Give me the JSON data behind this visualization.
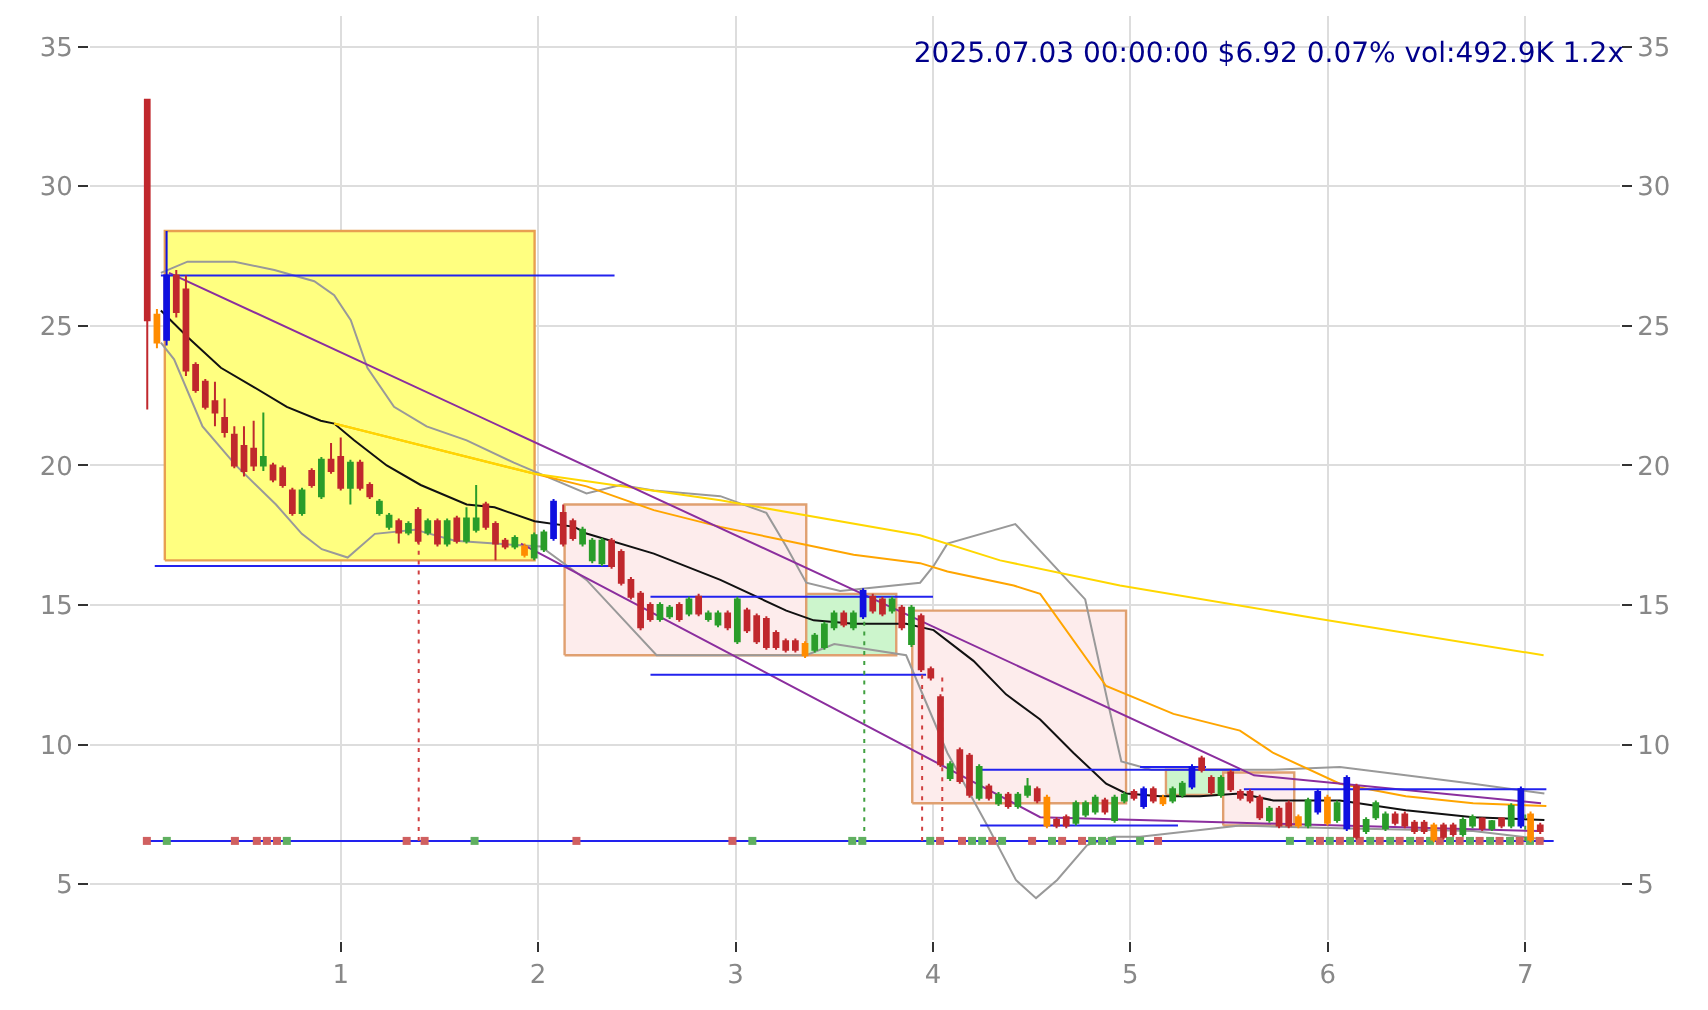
{
  "chart_data": {
    "type": "candlestick",
    "title": "2025.07.03 00:00:00 $6.92 0.07% vol:492.9K 1.2x",
    "x": [
      0.02,
      0.069,
      0.118,
      0.167,
      0.216,
      0.265,
      0.314,
      0.363,
      0.412,
      0.461,
      0.51,
      0.559,
      0.608,
      0.657,
      0.706,
      0.755,
      0.804,
      0.853,
      0.902,
      0.951,
      1.0,
      1.049,
      1.098,
      1.147,
      1.196,
      1.245,
      1.294,
      1.343,
      1.392,
      1.441,
      1.49,
      1.539,
      1.588,
      1.637,
      1.686,
      1.735,
      1.784,
      1.833,
      1.882,
      1.931,
      1.98,
      2.029,
      2.078,
      2.127,
      2.176,
      2.225,
      2.274,
      2.323,
      2.372,
      2.421,
      2.47,
      2.519,
      2.568,
      2.617,
      2.666,
      2.715,
      2.764,
      2.813,
      2.862,
      2.911,
      2.96,
      3.009,
      3.058,
      3.107,
      3.156,
      3.205,
      3.254,
      3.303,
      3.352,
      3.401,
      3.45,
      3.499,
      3.548,
      3.597,
      3.646,
      3.695,
      3.744,
      3.793,
      3.842,
      3.891,
      3.94,
      3.989,
      4.038,
      4.087,
      4.136,
      4.185,
      4.234,
      4.283,
      4.332,
      4.381,
      4.43,
      4.479,
      4.528,
      4.577,
      4.626,
      4.675,
      4.724,
      4.773,
      4.822,
      4.871,
      4.92,
      4.969,
      5.018,
      5.067,
      5.116,
      5.165,
      5.214,
      5.263,
      5.312,
      5.361,
      5.41,
      5.459,
      5.508,
      5.557,
      5.606,
      5.655,
      5.704,
      5.753,
      5.802,
      5.851,
      5.9,
      5.949,
      5.998,
      6.047,
      6.096,
      6.145,
      6.194,
      6.243,
      6.292,
      6.341,
      6.39,
      6.439,
      6.488,
      6.537,
      6.586,
      6.635,
      6.684,
      6.733,
      6.782,
      6.831,
      6.88,
      6.929,
      6.978,
      7.027,
      7.076
    ],
    "ohlc": [
      [
        33.1,
        33.1,
        22.0,
        25.2
      ],
      [
        25.4,
        25.6,
        24.2,
        24.4
      ],
      [
        24.5,
        28.4,
        24.3,
        26.8
      ],
      [
        26.8,
        27.0,
        25.3,
        25.5
      ],
      [
        26.3,
        26.8,
        23.2,
        23.4
      ],
      [
        23.6,
        23.7,
        22.6,
        22.7
      ],
      [
        23.0,
        23.1,
        22.0,
        22.1
      ],
      [
        22.3,
        23.0,
        21.4,
        21.9
      ],
      [
        21.7,
        22.4,
        21.0,
        21.2
      ],
      [
        21.1,
        21.4,
        19.9,
        20.0
      ],
      [
        20.7,
        21.4,
        19.6,
        19.8
      ],
      [
        20.6,
        21.6,
        19.8,
        20.0
      ],
      [
        20.0,
        21.9,
        19.8,
        20.3
      ],
      [
        20.0,
        20.1,
        19.4,
        19.5
      ],
      [
        19.9,
        20.0,
        19.2,
        19.3
      ],
      [
        19.1,
        19.2,
        18.2,
        18.3
      ],
      [
        18.3,
        19.2,
        18.2,
        19.1
      ],
      [
        19.8,
        19.9,
        19.2,
        19.3
      ],
      [
        18.9,
        20.3,
        18.8,
        20.2
      ],
      [
        20.2,
        20.8,
        19.7,
        19.8
      ],
      [
        20.3,
        21.0,
        19.1,
        19.2
      ],
      [
        19.2,
        20.2,
        18.6,
        20.1
      ],
      [
        20.1,
        20.2,
        19.1,
        19.2
      ],
      [
        19.3,
        19.4,
        18.8,
        18.9
      ],
      [
        18.3,
        18.8,
        18.2,
        18.7
      ],
      [
        17.8,
        18.3,
        17.7,
        18.2
      ],
      [
        18.0,
        18.1,
        17.2,
        17.6
      ],
      [
        17.6,
        18.0,
        17.5,
        17.9
      ],
      [
        18.4,
        18.5,
        17.2,
        17.3
      ],
      [
        17.6,
        18.1,
        17.5,
        18.0
      ],
      [
        18.0,
        18.1,
        17.1,
        17.2
      ],
      [
        17.2,
        18.1,
        17.1,
        18.0
      ],
      [
        18.1,
        18.2,
        17.2,
        17.3
      ],
      [
        17.3,
        18.5,
        17.2,
        18.1
      ],
      [
        17.7,
        19.3,
        17.6,
        18.1
      ],
      [
        18.6,
        18.7,
        17.7,
        17.8
      ],
      [
        17.9,
        18.0,
        16.6,
        17.2
      ],
      [
        17.3,
        17.4,
        17.0,
        17.1
      ],
      [
        17.1,
        17.5,
        17.0,
        17.4
      ],
      [
        17.1,
        17.2,
        16.7,
        16.8
      ],
      [
        16.7,
        17.6,
        16.6,
        17.5
      ],
      [
        17.0,
        17.7,
        16.9,
        17.6
      ],
      [
        17.4,
        18.8,
        17.3,
        18.7
      ],
      [
        18.3,
        18.6,
        17.1,
        17.2
      ],
      [
        18.0,
        18.1,
        17.3,
        17.4
      ],
      [
        17.2,
        17.8,
        17.1,
        17.7
      ],
      [
        16.6,
        17.4,
        16.5,
        17.3
      ],
      [
        16.5,
        17.4,
        16.4,
        17.3
      ],
      [
        17.3,
        17.4,
        16.3,
        16.4
      ],
      [
        16.9,
        17.0,
        15.7,
        15.8
      ],
      [
        15.9,
        16.0,
        15.2,
        15.3
      ],
      [
        15.4,
        15.5,
        14.1,
        14.2
      ],
      [
        15.0,
        15.1,
        14.4,
        14.5
      ],
      [
        14.5,
        15.1,
        14.4,
        15.0
      ],
      [
        14.6,
        15.0,
        14.5,
        14.9
      ],
      [
        15.0,
        15.1,
        14.4,
        14.5
      ],
      [
        14.7,
        15.3,
        14.6,
        15.2
      ],
      [
        15.3,
        15.4,
        14.6,
        14.7
      ],
      [
        14.5,
        14.8,
        14.4,
        14.7
      ],
      [
        14.3,
        14.8,
        14.2,
        14.7
      ],
      [
        14.7,
        14.8,
        14.1,
        14.2
      ],
      [
        13.7,
        15.3,
        13.6,
        15.2
      ],
      [
        14.8,
        14.9,
        14.0,
        14.1
      ],
      [
        14.6,
        14.7,
        13.6,
        13.7
      ],
      [
        14.5,
        14.6,
        13.4,
        13.5
      ],
      [
        14.0,
        14.1,
        13.4,
        13.5
      ],
      [
        13.7,
        13.8,
        13.3,
        13.4
      ],
      [
        13.7,
        13.8,
        13.3,
        13.4
      ],
      [
        13.2,
        13.7,
        13.1,
        13.6
      ],
      [
        13.4,
        14.0,
        13.3,
        13.9
      ],
      [
        13.5,
        14.4,
        13.4,
        14.3
      ],
      [
        14.2,
        14.8,
        14.1,
        14.7
      ],
      [
        14.7,
        14.8,
        14.2,
        14.3
      ],
      [
        14.2,
        14.8,
        14.1,
        14.7
      ],
      [
        14.6,
        15.6,
        14.5,
        15.5
      ],
      [
        15.3,
        15.4,
        14.7,
        14.8
      ],
      [
        15.2,
        15.3,
        14.6,
        14.7
      ],
      [
        14.8,
        15.3,
        14.7,
        15.2
      ],
      [
        14.9,
        15.0,
        14.1,
        14.2
      ],
      [
        13.6,
        15.0,
        13.5,
        14.9
      ],
      [
        14.6,
        14.7,
        12.6,
        12.7
      ],
      [
        12.7,
        12.8,
        12.3,
        12.4
      ],
      [
        11.7,
        11.8,
        9.2,
        9.3
      ],
      [
        8.8,
        9.4,
        8.7,
        9.3
      ],
      [
        9.8,
        9.9,
        8.6,
        8.7
      ],
      [
        9.6,
        9.7,
        8.1,
        8.2
      ],
      [
        8.1,
        9.3,
        8.0,
        9.2
      ],
      [
        8.5,
        8.6,
        8.0,
        8.1
      ],
      [
        7.9,
        8.3,
        7.8,
        8.2
      ],
      [
        8.2,
        8.3,
        7.7,
        7.8
      ],
      [
        7.8,
        8.3,
        7.7,
        8.2
      ],
      [
        8.2,
        8.8,
        8.1,
        8.5
      ],
      [
        8.4,
        8.5,
        7.9,
        8.0
      ],
      [
        8.1,
        8.2,
        7.0,
        7.1
      ],
      [
        7.3,
        7.4,
        7.0,
        7.1
      ],
      [
        7.4,
        7.5,
        7.0,
        7.1
      ],
      [
        7.2,
        8.0,
        7.1,
        7.9
      ],
      [
        7.5,
        8.0,
        7.4,
        7.9
      ],
      [
        7.6,
        8.2,
        7.5,
        8.1
      ],
      [
        8.0,
        8.1,
        7.5,
        7.6
      ],
      [
        7.3,
        8.2,
        7.2,
        8.1
      ],
      [
        8.0,
        8.3,
        7.9,
        8.2
      ],
      [
        8.3,
        8.4,
        8.0,
        8.1
      ],
      [
        7.8,
        8.5,
        7.7,
        8.4
      ],
      [
        8.4,
        8.5,
        7.9,
        8.0
      ],
      [
        8.1,
        8.2,
        7.8,
        7.9
      ],
      [
        8.0,
        8.5,
        7.9,
        8.4
      ],
      [
        8.2,
        8.7,
        8.1,
        8.6
      ],
      [
        8.5,
        9.3,
        8.4,
        9.2
      ],
      [
        9.5,
        9.6,
        9.0,
        9.1
      ],
      [
        8.8,
        8.9,
        8.2,
        8.3
      ],
      [
        8.2,
        8.9,
        8.1,
        8.8
      ],
      [
        9.0,
        9.1,
        8.3,
        8.4
      ],
      [
        8.3,
        8.4,
        8.0,
        8.1
      ],
      [
        8.3,
        8.4,
        7.9,
        8.0
      ],
      [
        8.1,
        8.2,
        7.3,
        7.4
      ],
      [
        7.3,
        7.8,
        7.2,
        7.7
      ],
      [
        7.7,
        7.8,
        7.0,
        7.1
      ],
      [
        7.9,
        8.0,
        7.0,
        7.1
      ],
      [
        7.4,
        7.5,
        7.0,
        7.1
      ],
      [
        7.1,
        8.1,
        7.0,
        8.0
      ],
      [
        7.6,
        8.4,
        7.5,
        8.3
      ],
      [
        8.1,
        8.2,
        7.1,
        7.2
      ],
      [
        7.3,
        8.0,
        7.2,
        7.9
      ],
      [
        7.0,
        8.9,
        6.9,
        8.8
      ],
      [
        8.5,
        8.6,
        6.6,
        6.7
      ],
      [
        6.9,
        7.4,
        6.8,
        7.3
      ],
      [
        7.4,
        8.0,
        7.3,
        7.9
      ],
      [
        7.0,
        7.6,
        6.9,
        7.5
      ],
      [
        7.5,
        7.6,
        7.1,
        7.2
      ],
      [
        7.5,
        7.6,
        7.0,
        7.1
      ],
      [
        7.2,
        7.3,
        6.8,
        6.9
      ],
      [
        7.2,
        7.3,
        6.8,
        6.9
      ],
      [
        7.1,
        7.2,
        6.5,
        6.6
      ],
      [
        7.1,
        7.2,
        6.6,
        6.7
      ],
      [
        7.1,
        7.2,
        6.7,
        6.8
      ],
      [
        6.8,
        7.4,
        6.7,
        7.3
      ],
      [
        7.1,
        7.5,
        7.0,
        7.4
      ],
      [
        7.35,
        7.4,
        6.9,
        7.0
      ],
      [
        7.0,
        7.3,
        6.9,
        7.25
      ],
      [
        7.35,
        7.4,
        7.0,
        7.1
      ],
      [
        7.1,
        7.9,
        7.0,
        7.8
      ],
      [
        7.1,
        8.5,
        7.0,
        8.4
      ],
      [
        7.5,
        7.6,
        6.5,
        6.6
      ],
      [
        7.1,
        7.2,
        6.8,
        6.9
      ]
    ],
    "colors": [
      "#c0282d",
      "#ff8c00",
      "#1010e0",
      "#c0282d",
      "#c0282d",
      "#c0282d",
      "#c0282d",
      "#c0282d",
      "#c0282d",
      "#c0282d",
      "#c0282d",
      "#c0282d",
      "#2a9d2a",
      "#c0282d",
      "#c0282d",
      "#c0282d",
      "#2a9d2a",
      "#c0282d",
      "#2a9d2a",
      "#c0282d",
      "#c0282d",
      "#2a9d2a",
      "#c0282d",
      "#c0282d",
      "#2a9d2a",
      "#2a9d2a",
      "#c0282d",
      "#2a9d2a",
      "#c0282d",
      "#2a9d2a",
      "#c0282d",
      "#2a9d2a",
      "#c0282d",
      "#2a9d2a",
      "#2a9d2a",
      "#c0282d",
      "#c0282d",
      "#c0282d",
      "#2a9d2a",
      "#ff8c00",
      "#2a9d2a",
      "#2a9d2a",
      "#1010e0",
      "#c0282d",
      "#c0282d",
      "#2a9d2a",
      "#2a9d2a",
      "#2a9d2a",
      "#c0282d",
      "#c0282d",
      "#c0282d",
      "#c0282d",
      "#c0282d",
      "#2a9d2a",
      "#2a9d2a",
      "#c0282d",
      "#2a9d2a",
      "#c0282d",
      "#2a9d2a",
      "#2a9d2a",
      "#c0282d",
      "#2a9d2a",
      "#c0282d",
      "#c0282d",
      "#c0282d",
      "#c0282d",
      "#c0282d",
      "#c0282d",
      "#ff8c00",
      "#2a9d2a",
      "#2a9d2a",
      "#2a9d2a",
      "#c0282d",
      "#2a9d2a",
      "#1010e0",
      "#c0282d",
      "#c0282d",
      "#2a9d2a",
      "#c0282d",
      "#2a9d2a",
      "#c0282d",
      "#c0282d",
      "#c0282d",
      "#2a9d2a",
      "#c0282d",
      "#c0282d",
      "#2a9d2a",
      "#c0282d",
      "#2a9d2a",
      "#c0282d",
      "#2a9d2a",
      "#2a9d2a",
      "#c0282d",
      "#ff8c00",
      "#c0282d",
      "#c0282d",
      "#2a9d2a",
      "#2a9d2a",
      "#2a9d2a",
      "#c0282d",
      "#2a9d2a",
      "#2a9d2a",
      "#c0282d",
      "#1010e0",
      "#c0282d",
      "#ff8c00",
      "#2a9d2a",
      "#2a9d2a",
      "#1010e0",
      "#c0282d",
      "#c0282d",
      "#2a9d2a",
      "#c0282d",
      "#c0282d",
      "#c0282d",
      "#c0282d",
      "#2a9d2a",
      "#c0282d",
      "#c0282d",
      "#ff8c00",
      "#2a9d2a",
      "#1010e0",
      "#ff8c00",
      "#2a9d2a",
      "#1010e0",
      "#c0282d",
      "#2a9d2a",
      "#2a9d2a",
      "#2a9d2a",
      "#c0282d",
      "#c0282d",
      "#c0282d",
      "#c0282d",
      "#ff8c00",
      "#c0282d",
      "#c0282d",
      "#2a9d2a",
      "#2a9d2a",
      "#c0282d",
      "#2a9d2a",
      "#c0282d",
      "#2a9d2a",
      "#1010e0",
      "#ff8c00",
      "#c0282d"
    ],
    "series": [
      {
        "type": "area",
        "x": [
          0.109,
          1.982
        ],
        "values": [
          null,
          null
        ],
        "lower": [
          16.6,
          16.6
        ],
        "upper": [
          28.4,
          28.4
        ],
        "colors": [
          "#ffff80",
          "#e8a050"
        ]
      },
      {
        "type": "area",
        "x": [
          2.134,
          3.358
        ],
        "values": [
          null,
          null
        ],
        "lower": [
          13.2,
          13.2
        ],
        "upper": [
          18.6,
          18.6
        ],
        "colors": [
          "#fdecec",
          "#e0a070"
        ]
      },
      {
        "type": "area",
        "x": [
          3.358,
          3.814
        ],
        "values": [
          null,
          null
        ],
        "lower": [
          13.2,
          13.2
        ],
        "upper": [
          15.4,
          15.4
        ],
        "colors": [
          "#ccf5cc",
          "#e0a070"
        ]
      },
      {
        "type": "area",
        "x": [
          3.895,
          4.978
        ],
        "values": [
          null,
          null
        ],
        "lower": [
          7.9,
          7.9
        ],
        "upper": [
          14.8,
          14.8
        ],
        "colors": [
          "#fdecec",
          "#e0a070"
        ]
      },
      {
        "type": "area",
        "x": [
          5.18,
          5.52
        ],
        "values": [
          null,
          null
        ],
        "lower": [
          8.2,
          8.2
        ],
        "upper": [
          9.1,
          9.1
        ],
        "colors": [
          "#ccf5cc",
          "#e0a070"
        ]
      },
      {
        "type": "area",
        "x": [
          5.47,
          5.83
        ],
        "values": [
          null,
          null
        ],
        "lower": [
          7.1,
          7.1
        ],
        "upper": [
          9.0,
          9.0
        ],
        "colors": [
          "#fdecec",
          "#e0a070"
        ]
      },
      {
        "type": "line",
        "color": "#999999",
        "x": [
          0.089,
          0.224,
          0.462,
          0.664,
          0.866,
          0.967,
          1.051,
          1.135,
          1.27,
          1.435,
          1.638,
          1.877,
          2.043,
          2.245,
          2.417,
          2.586,
          2.923,
          3.156,
          3.257,
          3.358,
          3.53,
          3.935,
          4.003,
          4.073,
          4.417,
          4.771,
          4.883,
          4.954,
          5.106,
          5.556,
          5.724,
          6.061,
          6.395,
          6.736,
          7.097
        ],
        "values": [
          26.9,
          27.3,
          27.3,
          27.0,
          26.6,
          26.1,
          25.2,
          23.5,
          22.1,
          21.4,
          20.9,
          20.1,
          19.6,
          19.0,
          19.3,
          19.1,
          18.9,
          18.3,
          17.1,
          15.8,
          15.5,
          15.8,
          16.4,
          17.2,
          17.9,
          15.2,
          11.6,
          9.4,
          9.1,
          9.1,
          9.1,
          9.2,
          8.9,
          8.6,
          8.25
        ]
      },
      {
        "type": "line",
        "color": "#999999",
        "x": [
          0.089,
          0.156,
          0.3,
          0.469,
          0.672,
          0.803,
          0.904,
          1.035,
          1.173,
          1.376,
          1.578,
          1.78,
          2.013,
          2.245,
          2.6,
          2.923,
          3.358,
          3.5,
          3.864,
          4.073,
          4.275,
          4.42,
          4.522,
          4.629,
          4.781,
          4.916,
          5.049,
          5.556,
          6.061,
          6.736,
          7.097
        ],
        "values": [
          24.4,
          23.8,
          21.4,
          20.0,
          18.6,
          17.55,
          17.0,
          16.7,
          17.55,
          17.7,
          17.3,
          17.2,
          17.1,
          15.9,
          13.2,
          13.2,
          13.2,
          13.6,
          13.2,
          9.7,
          7.1,
          5.15,
          4.5,
          5.15,
          6.4,
          6.7,
          6.7,
          7.1,
          7.0,
          6.9,
          6.6
        ]
      },
      {
        "type": "line",
        "color": "#111111",
        "x": [
          0.089,
          0.224,
          0.393,
          0.562,
          0.727,
          0.899,
          0.967,
          1.068,
          1.233,
          1.405,
          1.638,
          1.779,
          1.982,
          2.184,
          2.245,
          2.586,
          2.923,
          3.257,
          3.396,
          3.598,
          3.864,
          4.003,
          4.205,
          4.37,
          4.543,
          4.712,
          4.877,
          4.978,
          5.15,
          5.352,
          5.555,
          5.724,
          6.061,
          6.395,
          6.736,
          7.097
        ],
        "values": [
          25.55,
          24.6,
          23.5,
          22.8,
          22.1,
          21.6,
          21.5,
          20.9,
          20.0,
          19.3,
          18.6,
          18.5,
          18.0,
          17.8,
          17.56,
          16.84,
          15.9,
          14.8,
          14.45,
          14.33,
          14.33,
          14.1,
          13.0,
          11.8,
          10.9,
          9.7,
          8.6,
          8.25,
          8.15,
          8.15,
          8.25,
          8.0,
          8.0,
          7.65,
          7.4,
          7.3
        ]
      },
      {
        "type": "line",
        "color": "#ffa500",
        "x": [
          0.967,
          1.982,
          2.245,
          2.586,
          2.923,
          3.257,
          3.598,
          3.935,
          4.073,
          4.409,
          4.543,
          4.877,
          5.218,
          5.555,
          5.724,
          6.061,
          6.395,
          6.736,
          7.107
        ],
        "values": [
          21.5,
          19.7,
          19.25,
          18.4,
          17.8,
          17.3,
          16.8,
          16.5,
          16.2,
          15.7,
          15.4,
          12.1,
          11.1,
          10.5,
          9.7,
          8.6,
          8.15,
          7.9,
          7.8
        ]
      },
      {
        "type": "line",
        "color": "#ffd700",
        "x": [
          0.967,
          1.982,
          2.923,
          3.935,
          4.34,
          4.947,
          5.96,
          7.093
        ],
        "values": [
          21.5,
          19.7,
          18.75,
          17.5,
          16.6,
          15.7,
          14.5,
          13.2
        ]
      },
      {
        "type": "line",
        "color": "#8b2e9e",
        "x": [
          0.13,
          5.626,
          7.08
        ],
        "values": [
          26.9,
          8.9,
          7.9
        ]
      },
      {
        "type": "line",
        "color": "#8b2e9e",
        "x": [
          1.913,
          4.543,
          5.55,
          7.08
        ],
        "values": [
          17.2,
          7.4,
          7.2,
          6.9
        ]
      },
      {
        "type": "line",
        "color": "#2222ee",
        "x": [
          0.089,
          2.387
        ],
        "values": [
          26.8,
          26.8
        ]
      },
      {
        "type": "line",
        "color": "#2222ee",
        "x": [
          0.058,
          2.387
        ],
        "values": [
          16.4,
          16.4
        ]
      },
      {
        "type": "line",
        "color": "#2222ee",
        "x": [
          2.569,
          4.0
        ],
        "values": [
          15.3,
          15.3
        ]
      },
      {
        "type": "line",
        "color": "#2222ee",
        "x": [
          2.569,
          3.965
        ],
        "values": [
          12.5,
          12.5
        ]
      },
      {
        "type": "line",
        "color": "#2222ee",
        "x": [
          4.239,
          5.555
        ],
        "values": [
          9.1,
          9.1
        ]
      },
      {
        "type": "line",
        "color": "#2222ee",
        "x": [
          4.239,
          5.241
        ],
        "values": [
          7.1,
          7.1
        ]
      },
      {
        "type": "line",
        "color": "#2222ee",
        "x": [
          5.049,
          5.383
        ],
        "values": [
          9.2,
          9.2
        ]
      },
      {
        "type": "line",
        "color": "#2222ee",
        "x": [
          5.575,
          7.107
        ],
        "values": [
          8.4,
          8.4
        ]
      },
      {
        "type": "line",
        "color": "#2222ee",
        "x": [
          0.018,
          7.144
        ],
        "values": [
          6.55,
          6.55
        ]
      },
      {
        "type": "line",
        "color": "#d04040",
        "line_style": "dotted",
        "x": [
          1.395,
          1.395
        ],
        "values": [
          6.55,
          17.3
        ]
      },
      {
        "type": "line",
        "color": "#d04040",
        "line_style": "dotted",
        "x": [
          3.945,
          3.945
        ],
        "values": [
          6.55,
          12.5
        ]
      },
      {
        "type": "line",
        "color": "#d04040",
        "line_style": "dotted",
        "x": [
          4.047,
          4.047
        ],
        "values": [
          6.55,
          12.4
        ]
      },
      {
        "type": "line",
        "color": "#40a040",
        "line_style": "dotted",
        "x": [
          3.652,
          3.652
        ],
        "values": [
          6.55,
          14.4
        ]
      },
      {
        "type": "line",
        "color": "#40a040",
        "line_style": "dotted",
        "x": [
          7.0,
          7.0
        ],
        "values": [
          6.55,
          7.5
        ]
      },
      {
        "type": "scatter",
        "color": "#d06060",
        "marker": "square",
        "x": [
          0.018,
          0.464,
          0.575,
          0.626,
          0.677,
          1.334,
          1.425,
          2.194,
          2.984,
          4.036,
          4.147,
          4.3,
          4.502,
          4.654,
          4.755,
          5.14,
          5.96,
          6.061,
          6.162,
          6.263,
          6.364,
          6.466,
          6.567,
          6.668,
          6.769,
          6.87,
          6.972,
          7.073
        ],
        "values": [
          6.55,
          6.55,
          6.55,
          6.55,
          6.55,
          6.55,
          6.55,
          6.55,
          6.55,
          6.55,
          6.55,
          6.55,
          6.55,
          6.55,
          6.55,
          6.55,
          6.55,
          6.55,
          6.55,
          6.55,
          6.55,
          6.55,
          6.55,
          6.55,
          6.55,
          6.55,
          6.55,
          6.55
        ]
      },
      {
        "type": "scatter",
        "color": "#60b060",
        "marker": "square",
        "x": [
          0.119,
          0.727,
          1.678,
          3.085,
          3.591,
          3.642,
          3.986,
          4.198,
          4.249,
          4.35,
          4.603,
          4.806,
          4.856,
          4.907,
          5.049,
          5.808,
          5.909,
          6.01,
          6.113,
          6.215,
          6.316,
          6.417,
          6.518,
          6.619,
          6.72,
          6.822,
          6.923,
          7.024
        ],
        "values": [
          6.55,
          6.55,
          6.55,
          6.55,
          6.55,
          6.55,
          6.55,
          6.55,
          6.55,
          6.55,
          6.55,
          6.55,
          6.55,
          6.55,
          6.55,
          6.55,
          6.55,
          6.55,
          6.55,
          6.55,
          6.55,
          6.55,
          6.55,
          6.55,
          6.55,
          6.55,
          6.55,
          6.55
        ]
      }
    ],
    "xlim": [
      -0.27,
      7.48
    ],
    "xticks": [
      1,
      2,
      3,
      4,
      5,
      6,
      7
    ],
    "ylim": [
      3,
      36.1
    ],
    "yticks": [
      5,
      10,
      15,
      20,
      25,
      30,
      35
    ],
    "y2lim": [
      3,
      36.1
    ],
    "y2ticks": [
      5,
      10,
      15,
      20,
      25,
      30,
      35
    ],
    "grid": true
  }
}
